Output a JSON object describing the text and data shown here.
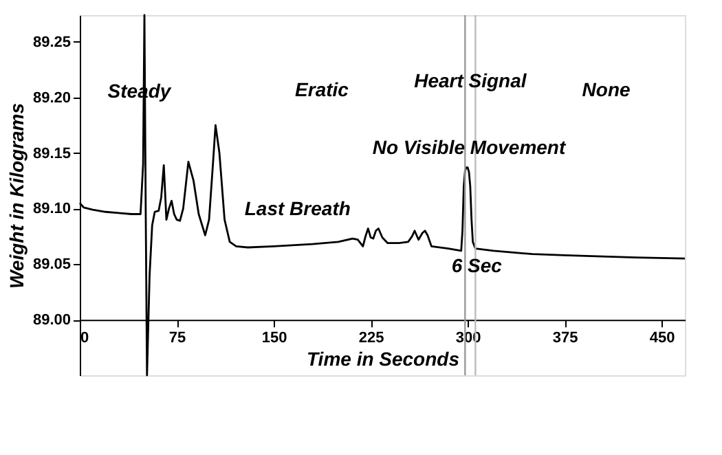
{
  "chart_data": {
    "type": "line",
    "xlabel": "Time in Seconds",
    "ylabel": "Weight in Kilograms",
    "x": [
      0,
      3,
      10,
      20,
      30,
      40,
      47,
      49,
      50,
      51,
      52,
      54,
      56,
      58,
      61,
      63,
      65,
      67,
      69,
      71,
      73,
      75,
      77.5,
      80,
      84,
      88,
      92,
      97,
      100,
      103,
      105,
      108,
      112,
      116,
      121,
      130,
      150,
      180,
      200,
      211,
      215,
      219,
      221,
      223,
      225,
      227,
      229,
      231,
      234,
      238,
      247,
      254,
      257,
      259,
      262,
      265,
      267,
      269,
      272,
      285,
      295,
      296,
      297,
      298,
      299,
      300,
      301,
      302,
      303,
      304,
      306,
      320,
      350,
      375,
      400,
      430,
      468
    ],
    "series": [
      {
        "color": "#000000",
        "values": [
          89.105,
          89.101,
          89.099,
          89.097,
          89.096,
          89.095,
          89.095,
          89.14,
          89.274,
          89.1,
          88.95,
          89.04,
          89.085,
          89.097,
          89.098,
          89.11,
          89.139,
          89.09,
          89.1,
          89.107,
          89.095,
          89.09,
          89.089,
          89.1,
          89.142,
          89.125,
          89.095,
          89.076,
          89.09,
          89.14,
          89.175,
          89.15,
          89.09,
          89.07,
          89.066,
          89.065,
          89.066,
          89.068,
          89.07,
          89.073,
          89.072,
          89.066,
          89.075,
          89.082,
          89.074,
          89.073,
          89.08,
          89.082,
          89.074,
          89.069,
          89.069,
          89.07,
          89.075,
          89.08,
          89.072,
          89.078,
          89.08,
          89.076,
          89.066,
          89.064,
          89.062,
          89.08,
          89.12,
          89.134,
          89.137,
          89.137,
          89.133,
          89.12,
          89.09,
          89.07,
          89.064,
          89.062,
          89.059,
          89.058,
          89.057,
          89.056,
          89.055
        ]
      }
    ],
    "xlim": [
      0,
      468
    ],
    "ylim": [
      88.95,
      89.274
    ],
    "xticks": [
      0,
      75,
      150,
      225,
      300,
      375,
      450
    ],
    "yticks": [
      {
        "value": 89.0,
        "label": "89.00"
      },
      {
        "value": 89.05,
        "label": "89.05"
      },
      {
        "value": 89.1,
        "label": "89.10"
      },
      {
        "value": 89.15,
        "label": "89.15"
      },
      {
        "value": 89.2,
        "label": "89.20"
      },
      {
        "value": 89.25,
        "label": "89.25"
      }
    ],
    "grid": false,
    "marker": "none",
    "line_style": "solid",
    "ref_lines": [
      {
        "axis": "x",
        "value": 298,
        "color": "#999999"
      },
      {
        "axis": "x",
        "value": 306,
        "color": "#bbbbbb"
      }
    ],
    "annotations": [
      {
        "text": "Steady",
        "x": 46,
        "y": 89.205
      },
      "Eratic",
      {
        "text": "Heart Signal",
        "x": 302,
        "y": 89.214
      },
      "None",
      {
        "text": "No Visible Movement",
        "x": 301,
        "y": 89.154
      },
      "Last Breath",
      {
        "text": "6 Sec",
        "x": 307,
        "y": 89.048
      }
    ]
  }
}
